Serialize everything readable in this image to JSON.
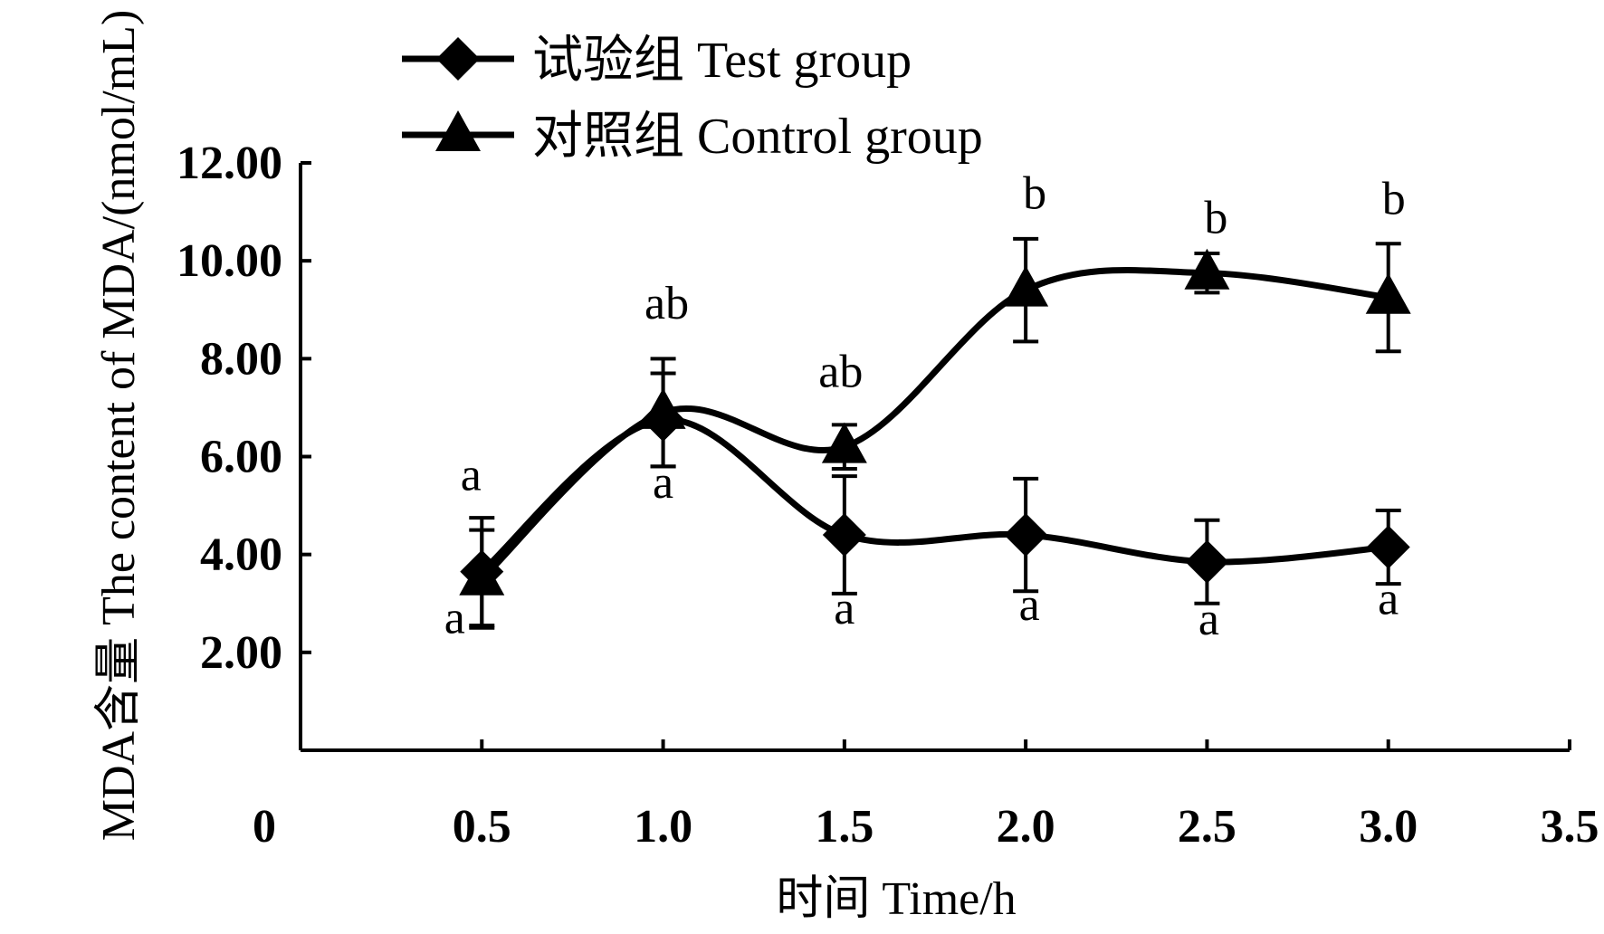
{
  "chart_data": {
    "type": "line",
    "xlabel": "时间 Time/h",
    "ylabel": "MDA含量 The content of MDA/(nmol/mL)",
    "xlim": [
      0,
      3.5
    ],
    "ylim": [
      0,
      12
    ],
    "x_ticks": [
      {
        "value": 0,
        "label": "0"
      },
      {
        "value": 0.5,
        "label": "0.5"
      },
      {
        "value": 1.0,
        "label": "1.0"
      },
      {
        "value": 1.5,
        "label": "1.5"
      },
      {
        "value": 2.0,
        "label": "2.0"
      },
      {
        "value": 2.5,
        "label": "2.5"
      },
      {
        "value": 3.0,
        "label": "3.0"
      },
      {
        "value": 3.5,
        "label": "3.5"
      }
    ],
    "y_ticks": [
      {
        "value": 2,
        "label": "2.00"
      },
      {
        "value": 4,
        "label": "4.00"
      },
      {
        "value": 6,
        "label": "6.00"
      },
      {
        "value": 8,
        "label": "8.00"
      },
      {
        "value": 10,
        "label": "10.00"
      },
      {
        "value": 12,
        "label": "12.00"
      }
    ],
    "x": [
      0.5,
      1.0,
      1.5,
      2.0,
      2.5,
      3.0
    ],
    "grid": false,
    "legend_position": "top-left",
    "series": [
      {
        "name": "试验组 Test group",
        "marker": "diamond",
        "values": [
          3.65,
          6.75,
          4.4,
          4.4,
          3.85,
          4.15
        ],
        "errors": [
          1.1,
          0.95,
          1.2,
          1.15,
          0.85,
          0.75
        ],
        "letters": [
          "a",
          "a",
          "a",
          "a",
          "a",
          "a"
        ]
      },
      {
        "name": "对照组 Control group",
        "marker": "triangle",
        "values": [
          3.5,
          6.9,
          6.2,
          9.4,
          9.75,
          9.25
        ],
        "errors": [
          1.0,
          1.1,
          0.45,
          1.05,
          0.4,
          1.1
        ],
        "letters": [
          "a",
          "ab",
          "ab",
          "b",
          "b",
          "b"
        ]
      }
    ]
  }
}
